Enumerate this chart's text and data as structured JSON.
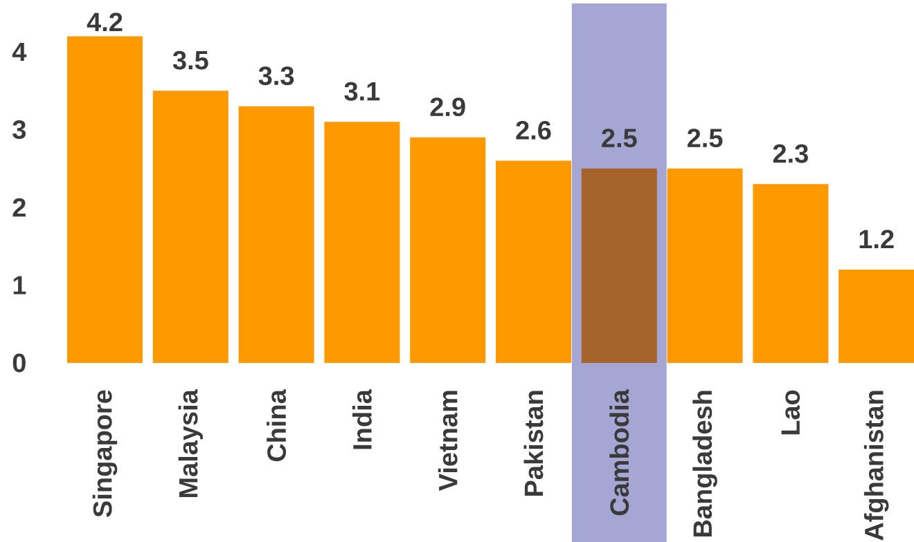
{
  "chart_data": {
    "type": "bar",
    "categories": [
      "Singapore",
      "Malaysia",
      "China",
      "India",
      "Vietnam",
      "Pakistan",
      "Cambodia",
      "Bangladesh",
      "Lao",
      "Afghanistan"
    ],
    "values": [
      4.2,
      3.5,
      3.3,
      3.1,
      2.9,
      2.6,
      2.5,
      2.5,
      2.3,
      1.2
    ],
    "colors": [
      "#ff9900",
      "#ff9900",
      "#ff9900",
      "#ff9900",
      "#ff9900",
      "#ff9900",
      "#a6632b",
      "#ff9900",
      "#ff9900",
      "#ff9900"
    ],
    "ylim": [
      0,
      4.2
    ],
    "yticks": [
      0,
      1,
      2,
      3,
      4
    ],
    "data_labels": true,
    "bands": [
      {
        "axis": "x",
        "from": "Cambodia",
        "to": "Cambodia",
        "color": "#a6a6d4"
      }
    ]
  }
}
